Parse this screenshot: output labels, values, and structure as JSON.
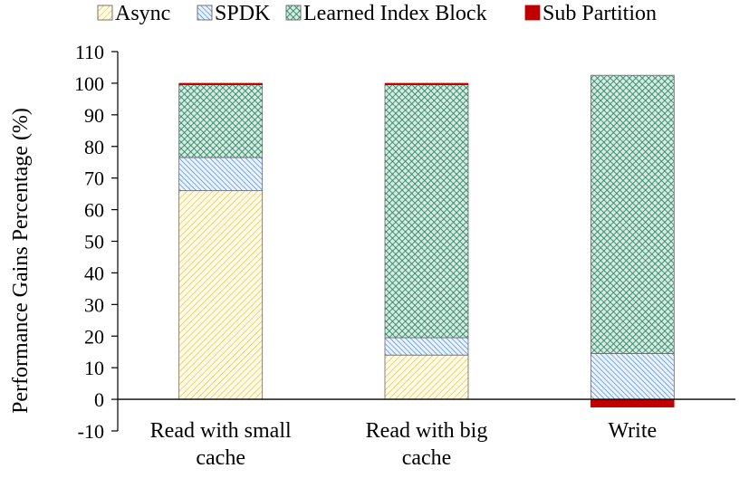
{
  "chart_data": {
    "type": "bar",
    "stacked": true,
    "title": "",
    "xlabel": "",
    "ylabel": "Performance Gains Percentage (%)",
    "ylim": [
      -10,
      110
    ],
    "yticks": [
      110,
      100,
      90,
      80,
      70,
      60,
      50,
      40,
      30,
      20,
      10,
      0,
      -10
    ],
    "grid": false,
    "legend_position": "top",
    "categories": [
      [
        "Read with small",
        "cache"
      ],
      [
        "Read with big",
        "cache"
      ],
      [
        "Write"
      ]
    ],
    "series": [
      {
        "name": "Async",
        "values": [
          66,
          14,
          0
        ],
        "color": "#f2d15a",
        "pattern": "diagonal-hatch-light"
      },
      {
        "name": "SPDK",
        "values": [
          10.5,
          5.5,
          14.5
        ],
        "color": "#4f8fd6",
        "pattern": "diagonal-hatch-dense"
      },
      {
        "name": "Learned Index Block",
        "values": [
          23,
          80,
          88
        ],
        "color": "#2e8b6b",
        "pattern": "cross-hatch"
      },
      {
        "name": "Sub Partition",
        "values": [
          0.5,
          0.5,
          -2.5
        ],
        "color": "#c00000",
        "pattern": "solid"
      }
    ]
  }
}
